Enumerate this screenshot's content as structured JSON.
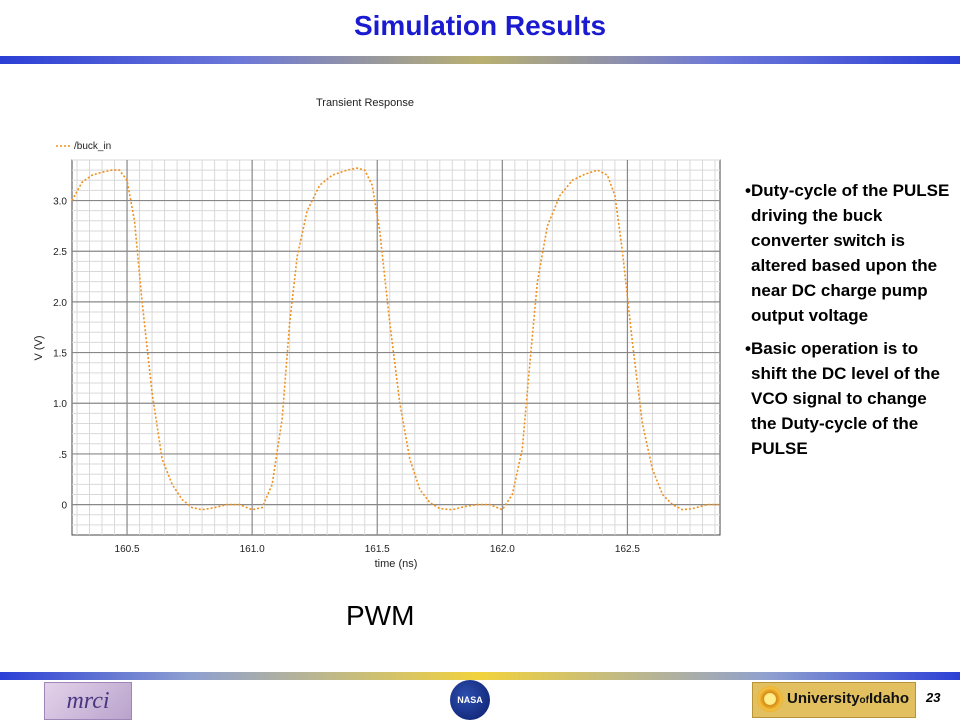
{
  "slide": {
    "title": "Simulation Results",
    "caption": "PWM",
    "page_number": "23",
    "bullets": [
      "•Duty-cycle of the PULSE driving the buck converter switch is altered based upon the near DC charge pump output voltage",
      "•Basic operation is to shift the DC level of the VCO signal to change the Duty-cycle of the PULSE"
    ]
  },
  "logos": {
    "left": "mrci",
    "center": "NASA",
    "right_prefix": "University",
    "right_of": "of",
    "right_name": "Idaho"
  },
  "colors": {
    "accent": "#1a1ad0",
    "trace": "#f0901e"
  },
  "chart_data": {
    "type": "line",
    "title": "Transient Response",
    "xlabel": "time (ns)",
    "ylabel": "V (V)",
    "xlim": [
      160.28,
      162.87
    ],
    "ylim": [
      -0.3,
      3.4
    ],
    "x_ticks": [
      160.5,
      161.0,
      161.5,
      162.0,
      162.5
    ],
    "x_tick_labels": [
      "160.5",
      "161.0",
      "161.5",
      "162.0",
      "162.5"
    ],
    "y_ticks": [
      3.0,
      2.5,
      2.0,
      1.5,
      1.0,
      0.5,
      0
    ],
    "y_tick_labels": [
      "3.0",
      "2.5",
      "2.0",
      "1.5",
      "1.0",
      ".5",
      "0"
    ],
    "grid": true,
    "legend_position": "top-left",
    "series": [
      {
        "name": "/buck_in",
        "style": "dotted",
        "points": [
          [
            160.28,
            3.0
          ],
          [
            160.32,
            3.18
          ],
          [
            160.36,
            3.25
          ],
          [
            160.4,
            3.28
          ],
          [
            160.44,
            3.3
          ],
          [
            160.47,
            3.3
          ],
          [
            160.5,
            3.2
          ],
          [
            160.53,
            2.8
          ],
          [
            160.56,
            2.0
          ],
          [
            160.6,
            1.1
          ],
          [
            160.64,
            0.45
          ],
          [
            160.68,
            0.2
          ],
          [
            160.72,
            0.05
          ],
          [
            160.76,
            -0.03
          ],
          [
            160.8,
            -0.05
          ],
          [
            160.85,
            -0.03
          ],
          [
            160.9,
            0.0
          ],
          [
            160.95,
            0.0
          ],
          [
            161.0,
            -0.05
          ],
          [
            161.04,
            -0.03
          ],
          [
            161.08,
            0.2
          ],
          [
            161.12,
            0.85
          ],
          [
            161.15,
            1.8
          ],
          [
            161.18,
            2.45
          ],
          [
            161.22,
            2.9
          ],
          [
            161.27,
            3.15
          ],
          [
            161.32,
            3.25
          ],
          [
            161.38,
            3.3
          ],
          [
            161.42,
            3.32
          ],
          [
            161.45,
            3.3
          ],
          [
            161.48,
            3.15
          ],
          [
            161.51,
            2.7
          ],
          [
            161.55,
            1.8
          ],
          [
            161.59,
            1.0
          ],
          [
            161.63,
            0.45
          ],
          [
            161.67,
            0.15
          ],
          [
            161.71,
            0.02
          ],
          [
            161.75,
            -0.04
          ],
          [
            161.8,
            -0.05
          ],
          [
            161.85,
            -0.02
          ],
          [
            161.9,
            0.0
          ],
          [
            161.95,
            0.0
          ],
          [
            162.0,
            -0.05
          ],
          [
            162.04,
            0.1
          ],
          [
            162.08,
            0.55
          ],
          [
            162.11,
            1.4
          ],
          [
            162.14,
            2.2
          ],
          [
            162.18,
            2.75
          ],
          [
            162.23,
            3.05
          ],
          [
            162.28,
            3.2
          ],
          [
            162.33,
            3.26
          ],
          [
            162.38,
            3.3
          ],
          [
            162.42,
            3.25
          ],
          [
            162.45,
            3.05
          ],
          [
            162.48,
            2.5
          ],
          [
            162.52,
            1.6
          ],
          [
            162.56,
            0.8
          ],
          [
            162.6,
            0.35
          ],
          [
            162.64,
            0.1
          ],
          [
            162.68,
            0.0
          ],
          [
            162.72,
            -0.05
          ],
          [
            162.76,
            -0.04
          ],
          [
            162.82,
            0.0
          ],
          [
            162.87,
            0.0
          ]
        ]
      }
    ]
  }
}
